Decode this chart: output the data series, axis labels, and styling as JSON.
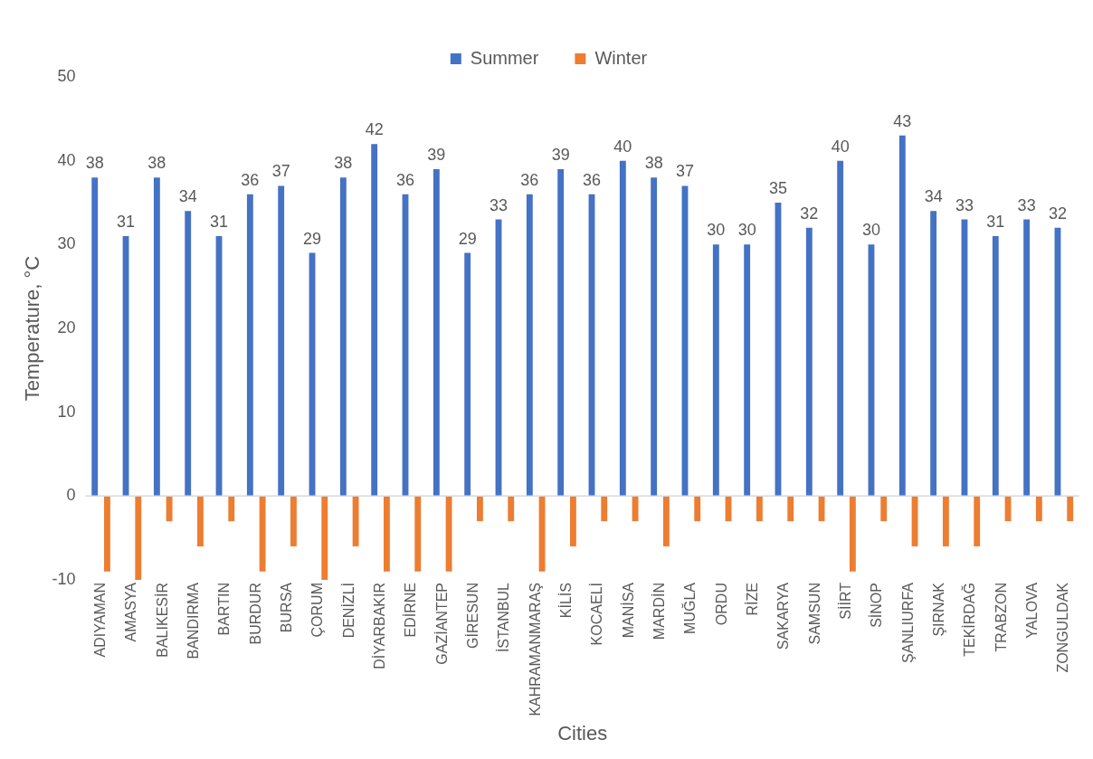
{
  "chart_data": {
    "type": "bar",
    "xlabel": "Cities",
    "ylabel": "Temperature, °C",
    "categories": [
      "ADIYAMAN",
      "AMASYA",
      "BALIKESİR",
      "BANDIRMA",
      "BARTIN",
      "BURDUR",
      "BURSA",
      "ÇORUM",
      "DENİZLİ",
      "DİYARBAKIR",
      "EDİRNE",
      "GAZİANTEP",
      "GİRESUN",
      "İSTANBUL",
      "KAHRAMANMARAŞ",
      "KİLİS",
      "KOCAELİ",
      "MANİSA",
      "MARDİN",
      "MUĞLA",
      "ORDU",
      "RİZE",
      "SAKARYA",
      "SAMSUN",
      "SİİRT",
      "SİNOP",
      "ŞANLIURFA",
      "ŞIRNAK",
      "TEKİRDAĞ",
      "TRABZON",
      "YALOVA",
      "ZONGULDAK"
    ],
    "series": [
      {
        "name": "Summer",
        "color": "#4472c4",
        "values": [
          38,
          31,
          38,
          34,
          31,
          36,
          37,
          29,
          38,
          42,
          36,
          39,
          29,
          33,
          36,
          39,
          36,
          40,
          38,
          37,
          30,
          30,
          35,
          32,
          40,
          30,
          43,
          34,
          33,
          31,
          33,
          32
        ],
        "value_labels": [
          "38",
          "31",
          "38",
          "34",
          "31",
          "36",
          "37",
          "29",
          "38",
          "42",
          "36",
          "39",
          "29",
          "33",
          "36",
          "39",
          "36",
          "40",
          "38",
          "37",
          "30",
          "30",
          "35",
          "32",
          "40",
          "30",
          "43",
          "34",
          "33",
          "31",
          "33",
          "32"
        ]
      },
      {
        "name": "Winter",
        "color": "#ed7d31",
        "values": [
          -9,
          -10,
          -3,
          -6,
          -3,
          -9,
          -6,
          -10,
          -6,
          -9,
          -9,
          -9,
          -3,
          -3,
          -9,
          -6,
          -3,
          -3,
          -6,
          -3,
          -3,
          -3,
          -3,
          -3,
          -9,
          -3,
          -6,
          -6,
          -6,
          -3,
          -3,
          -3
        ]
      }
    ],
    "ylim": [
      -10,
      50
    ],
    "yticks": [
      -10,
      0,
      10,
      20,
      30,
      40,
      50
    ],
    "ref_lines": [
      {
        "axis": "y",
        "value": 0,
        "color": "#d9d9d9"
      }
    ],
    "grid": false,
    "legend": "top"
  }
}
